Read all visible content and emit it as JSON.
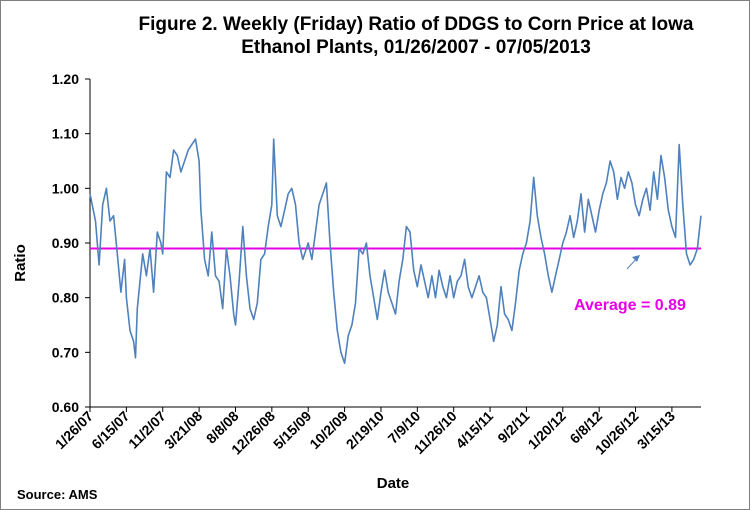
{
  "source_note": "Source: AMS",
  "chart_data": {
    "type": "line",
    "title": "Figure 2. Weekly (Friday) Ratio of DDGS to Corn Price at Iowa Ethanol Plants, 01/26/2007 - 07/05/2013",
    "title_lines": [
      "Figure 2. Weekly (Friday) Ratio of DDGS to Corn Price at Iowa",
      "Ethanol Plants, 01/26/2007 - 07/05/2013"
    ],
    "xlabel": "Date",
    "ylabel": "Ratio",
    "ylim": [
      0.6,
      1.2
    ],
    "yticks": [
      "0.60",
      "0.70",
      "0.80",
      "0.90",
      "1.00",
      "1.10",
      "1.20"
    ],
    "x_tick_labels": [
      "1/26/07",
      "6/15/07",
      "11/2/07",
      "3/21/08",
      "8/8/08",
      "12/26/08",
      "5/15/09",
      "10/2/09",
      "2/19/10",
      "7/9/10",
      "11/26/10",
      "4/15/11",
      "9/2/11",
      "1/20/12",
      "6/8/12",
      "10/26/12",
      "3/15/13"
    ],
    "x_range": [
      "1/26/07",
      "7/5/13"
    ],
    "grid": false,
    "series_color": "#4f81bd",
    "average": {
      "value": 0.89,
      "label": "Average = 0.89",
      "color": "#e600e6"
    },
    "series": [
      {
        "values": [
          [
            "1/26/07",
            0.99
          ],
          [
            "2/16/07",
            0.94
          ],
          [
            "3/2/07",
            0.86
          ],
          [
            "3/16/07",
            0.97
          ],
          [
            "3/30/07",
            1.0
          ],
          [
            "4/13/07",
            0.94
          ],
          [
            "4/27/07",
            0.95
          ],
          [
            "5/11/07",
            0.88
          ],
          [
            "5/25/07",
            0.81
          ],
          [
            "6/8/07",
            0.87
          ],
          [
            "6/15/07",
            0.8
          ],
          [
            "6/29/07",
            0.74
          ],
          [
            "7/13/07",
            0.72
          ],
          [
            "7/20/07",
            0.69
          ],
          [
            "7/27/07",
            0.78
          ],
          [
            "8/17/07",
            0.88
          ],
          [
            "8/31/07",
            0.84
          ],
          [
            "9/14/07",
            0.89
          ],
          [
            "9/28/07",
            0.81
          ],
          [
            "10/12/07",
            0.92
          ],
          [
            "10/26/07",
            0.9
          ],
          [
            "11/2/07",
            0.88
          ],
          [
            "11/16/07",
            1.03
          ],
          [
            "11/30/07",
            1.02
          ],
          [
            "12/14/07",
            1.07
          ],
          [
            "12/28/07",
            1.06
          ],
          [
            "1/11/08",
            1.03
          ],
          [
            "1/25/08",
            1.05
          ],
          [
            "2/8/08",
            1.07
          ],
          [
            "2/22/08",
            1.08
          ],
          [
            "3/7/08",
            1.09
          ],
          [
            "3/21/08",
            1.05
          ],
          [
            "3/28/08",
            0.96
          ],
          [
            "4/11/08",
            0.87
          ],
          [
            "4/25/08",
            0.84
          ],
          [
            "5/9/08",
            0.92
          ],
          [
            "5/23/08",
            0.84
          ],
          [
            "6/6/08",
            0.83
          ],
          [
            "6/20/08",
            0.78
          ],
          [
            "7/4/08",
            0.89
          ],
          [
            "7/18/08",
            0.84
          ],
          [
            "8/1/08",
            0.77
          ],
          [
            "8/8/08",
            0.75
          ],
          [
            "8/22/08",
            0.83
          ],
          [
            "9/5/08",
            0.93
          ],
          [
            "9/19/08",
            0.84
          ],
          [
            "10/3/08",
            0.78
          ],
          [
            "10/17/08",
            0.76
          ],
          [
            "10/31/08",
            0.79
          ],
          [
            "11/14/08",
            0.87
          ],
          [
            "11/28/08",
            0.88
          ],
          [
            "12/12/08",
            0.93
          ],
          [
            "12/26/08",
            0.97
          ],
          [
            "1/2/09",
            1.09
          ],
          [
            "1/16/09",
            0.95
          ],
          [
            "1/30/09",
            0.93
          ],
          [
            "2/13/09",
            0.96
          ],
          [
            "2/27/09",
            0.99
          ],
          [
            "3/13/09",
            1.0
          ],
          [
            "3/27/09",
            0.97
          ],
          [
            "4/10/09",
            0.9
          ],
          [
            "4/24/09",
            0.87
          ],
          [
            "5/8/09",
            0.89
          ],
          [
            "5/15/09",
            0.9
          ],
          [
            "5/29/09",
            0.87
          ],
          [
            "6/12/09",
            0.92
          ],
          [
            "6/26/09",
            0.97
          ],
          [
            "7/10/09",
            0.99
          ],
          [
            "7/24/09",
            1.01
          ],
          [
            "8/7/09",
            0.9
          ],
          [
            "8/21/09",
            0.81
          ],
          [
            "9/4/09",
            0.74
          ],
          [
            "9/18/09",
            0.7
          ],
          [
            "10/2/09",
            0.68
          ],
          [
            "10/16/09",
            0.73
          ],
          [
            "10/30/09",
            0.75
          ],
          [
            "11/13/09",
            0.79
          ],
          [
            "11/27/09",
            0.89
          ],
          [
            "12/11/09",
            0.88
          ],
          [
            "12/25/09",
            0.9
          ],
          [
            "1/8/10",
            0.84
          ],
          [
            "1/22/10",
            0.8
          ],
          [
            "2/5/10",
            0.76
          ],
          [
            "2/19/10",
            0.81
          ],
          [
            "3/5/10",
            0.85
          ],
          [
            "3/19/10",
            0.81
          ],
          [
            "4/2/10",
            0.79
          ],
          [
            "4/16/10",
            0.77
          ],
          [
            "4/30/10",
            0.83
          ],
          [
            "5/14/10",
            0.87
          ],
          [
            "5/28/10",
            0.93
          ],
          [
            "6/11/10",
            0.92
          ],
          [
            "6/25/10",
            0.85
          ],
          [
            "7/9/10",
            0.82
          ],
          [
            "7/23/10",
            0.86
          ],
          [
            "8/6/10",
            0.83
          ],
          [
            "8/20/10",
            0.8
          ],
          [
            "9/3/10",
            0.84
          ],
          [
            "9/17/10",
            0.8
          ],
          [
            "10/1/10",
            0.85
          ],
          [
            "10/15/10",
            0.82
          ],
          [
            "10/29/10",
            0.8
          ],
          [
            "11/12/10",
            0.84
          ],
          [
            "11/26/10",
            0.8
          ],
          [
            "12/10/10",
            0.83
          ],
          [
            "12/24/10",
            0.84
          ],
          [
            "1/7/11",
            0.87
          ],
          [
            "1/21/11",
            0.82
          ],
          [
            "2/4/11",
            0.8
          ],
          [
            "2/18/11",
            0.82
          ],
          [
            "3/4/11",
            0.84
          ],
          [
            "3/18/11",
            0.81
          ],
          [
            "4/1/11",
            0.8
          ],
          [
            "4/15/11",
            0.76
          ],
          [
            "4/29/11",
            0.72
          ],
          [
            "5/13/11",
            0.75
          ],
          [
            "5/27/11",
            0.82
          ],
          [
            "6/10/11",
            0.77
          ],
          [
            "6/24/11",
            0.76
          ],
          [
            "7/8/11",
            0.74
          ],
          [
            "7/22/11",
            0.79
          ],
          [
            "8/5/11",
            0.85
          ],
          [
            "8/19/11",
            0.88
          ],
          [
            "9/2/11",
            0.9
          ],
          [
            "9/16/11",
            0.94
          ],
          [
            "9/30/11",
            1.02
          ],
          [
            "10/14/11",
            0.95
          ],
          [
            "10/28/11",
            0.91
          ],
          [
            "11/11/11",
            0.88
          ],
          [
            "11/25/11",
            0.84
          ],
          [
            "12/9/11",
            0.81
          ],
          [
            "12/23/11",
            0.84
          ],
          [
            "1/6/12",
            0.87
          ],
          [
            "1/20/12",
            0.9
          ],
          [
            "2/3/12",
            0.92
          ],
          [
            "2/17/12",
            0.95
          ],
          [
            "3/2/12",
            0.91
          ],
          [
            "3/16/12",
            0.94
          ],
          [
            "3/30/12",
            0.99
          ],
          [
            "4/13/12",
            0.92
          ],
          [
            "4/27/12",
            0.98
          ],
          [
            "5/11/12",
            0.95
          ],
          [
            "5/25/12",
            0.92
          ],
          [
            "6/8/12",
            0.96
          ],
          [
            "6/22/12",
            0.99
          ],
          [
            "7/6/12",
            1.01
          ],
          [
            "7/20/12",
            1.05
          ],
          [
            "8/3/12",
            1.03
          ],
          [
            "8/17/12",
            0.98
          ],
          [
            "8/31/12",
            1.02
          ],
          [
            "9/14/12",
            1.0
          ],
          [
            "9/28/12",
            1.03
          ],
          [
            "10/12/12",
            1.01
          ],
          [
            "10/26/12",
            0.97
          ],
          [
            "11/9/12",
            0.95
          ],
          [
            "11/23/12",
            0.98
          ],
          [
            "12/7/12",
            1.0
          ],
          [
            "12/21/12",
            0.96
          ],
          [
            "1/4/13",
            1.03
          ],
          [
            "1/18/13",
            0.98
          ],
          [
            "2/1/13",
            1.06
          ],
          [
            "2/15/13",
            1.02
          ],
          [
            "3/1/13",
            0.96
          ],
          [
            "3/15/13",
            0.93
          ],
          [
            "3/29/13",
            0.91
          ],
          [
            "4/12/13",
            1.08
          ],
          [
            "4/26/13",
            0.97
          ],
          [
            "5/10/13",
            0.88
          ],
          [
            "5/24/13",
            0.86
          ],
          [
            "6/7/13",
            0.87
          ],
          [
            "6/21/13",
            0.89
          ],
          [
            "7/5/13",
            0.95
          ]
        ]
      }
    ]
  }
}
